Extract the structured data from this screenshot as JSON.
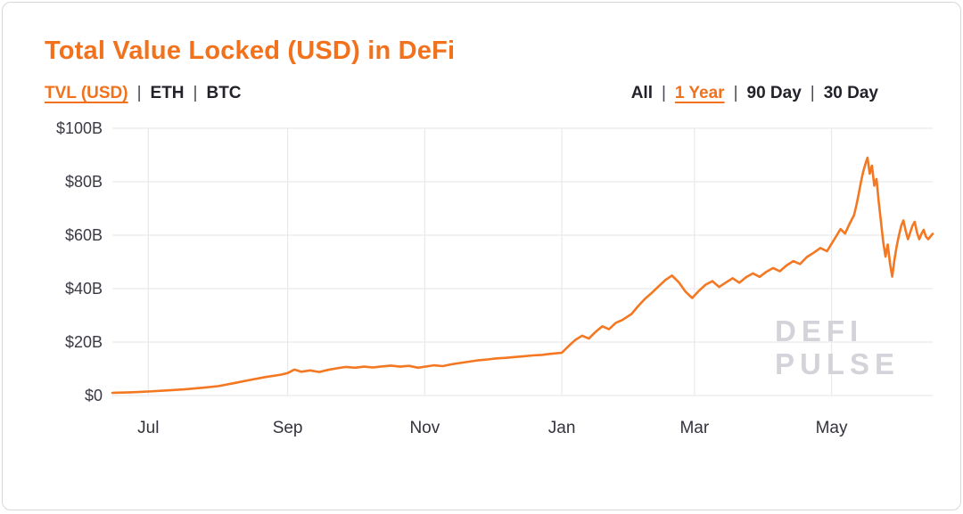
{
  "page": {
    "title": "Total Value Locked (USD) in DeFi"
  },
  "colors": {
    "accent": "#f2711c",
    "line": "#f47721",
    "grid": "#e9e9ec",
    "text": "#22222b",
    "watermark": "#d3d3d9"
  },
  "tabs": {
    "separator": "|",
    "metric": {
      "items": [
        {
          "label": "TVL (USD)",
          "active": true
        },
        {
          "label": "ETH",
          "active": false
        },
        {
          "label": "BTC",
          "active": false
        }
      ]
    },
    "range": {
      "items": [
        {
          "label": "All",
          "active": false
        },
        {
          "label": "1 Year",
          "active": true
        },
        {
          "label": "90 Day",
          "active": false
        },
        {
          "label": "30 Day",
          "active": false
        }
      ]
    }
  },
  "watermark": {
    "line1": "DEFI",
    "line2": "PULSE"
  },
  "chart_data": {
    "type": "line",
    "title": "Total Value Locked (USD) in DeFi",
    "xlabel": "",
    "ylabel": "",
    "unit": "USD billions",
    "xlim": [
      0,
      365
    ],
    "ylim": [
      0,
      100
    ],
    "grid": true,
    "legend": false,
    "xticks": [
      {
        "pos": 16,
        "label": "Jul"
      },
      {
        "pos": 78,
        "label": "Sep"
      },
      {
        "pos": 139,
        "label": "Nov"
      },
      {
        "pos": 200,
        "label": "Jan"
      },
      {
        "pos": 259,
        "label": "Mar"
      },
      {
        "pos": 320,
        "label": "May"
      }
    ],
    "yticks": [
      {
        "value": 0,
        "label": "$0"
      },
      {
        "value": 20,
        "label": "$20B"
      },
      {
        "value": 40,
        "label": "$40B"
      },
      {
        "value": 60,
        "label": "$60B"
      },
      {
        "value": 80,
        "label": "$80B"
      },
      {
        "value": 100,
        "label": "$100B"
      }
    ],
    "series": [
      {
        "name": "TVL (USD)",
        "points": [
          [
            0,
            1.0
          ],
          [
            8,
            1.2
          ],
          [
            16,
            1.5
          ],
          [
            24,
            1.9
          ],
          [
            32,
            2.3
          ],
          [
            40,
            2.9
          ],
          [
            47,
            3.5
          ],
          [
            54,
            4.6
          ],
          [
            61,
            5.8
          ],
          [
            68,
            6.9
          ],
          [
            75,
            7.8
          ],
          [
            78,
            8.4
          ],
          [
            81,
            9.7
          ],
          [
            84,
            8.9
          ],
          [
            88,
            9.4
          ],
          [
            92,
            8.8
          ],
          [
            96,
            9.6
          ],
          [
            100,
            10.2
          ],
          [
            104,
            10.7
          ],
          [
            108,
            10.4
          ],
          [
            112,
            10.8
          ],
          [
            116,
            10.5
          ],
          [
            120,
            10.9
          ],
          [
            124,
            11.2
          ],
          [
            128,
            10.8
          ],
          [
            132,
            11.1
          ],
          [
            136,
            10.4
          ],
          [
            139,
            10.8
          ],
          [
            143,
            11.3
          ],
          [
            147,
            11.0
          ],
          [
            151,
            11.7
          ],
          [
            155,
            12.2
          ],
          [
            159,
            12.7
          ],
          [
            163,
            13.2
          ],
          [
            167,
            13.5
          ],
          [
            171,
            13.9
          ],
          [
            175,
            14.1
          ],
          [
            179,
            14.4
          ],
          [
            183,
            14.7
          ],
          [
            187,
            15.0
          ],
          [
            191,
            15.2
          ],
          [
            195,
            15.6
          ],
          [
            200,
            16.0
          ],
          [
            203,
            18.5
          ],
          [
            206,
            20.8
          ],
          [
            209,
            22.4
          ],
          [
            212,
            21.3
          ],
          [
            215,
            23.8
          ],
          [
            218,
            25.9
          ],
          [
            221,
            24.8
          ],
          [
            224,
            27.2
          ],
          [
            227,
            28.3
          ],
          [
            231,
            30.5
          ],
          [
            234,
            33.5
          ],
          [
            237,
            36.2
          ],
          [
            240,
            38.4
          ],
          [
            243,
            40.8
          ],
          [
            246,
            43.2
          ],
          [
            249,
            44.9
          ],
          [
            252,
            42.4
          ],
          [
            255,
            38.9
          ],
          [
            258,
            36.5
          ],
          [
            261,
            39.2
          ],
          [
            264,
            41.5
          ],
          [
            267,
            42.8
          ],
          [
            270,
            40.6
          ],
          [
            273,
            42.3
          ],
          [
            276,
            43.9
          ],
          [
            279,
            42.2
          ],
          [
            282,
            44.3
          ],
          [
            285,
            45.7
          ],
          [
            288,
            44.4
          ],
          [
            291,
            46.3
          ],
          [
            294,
            47.7
          ],
          [
            297,
            46.5
          ],
          [
            300,
            48.7
          ],
          [
            303,
            50.3
          ],
          [
            306,
            49.2
          ],
          [
            309,
            51.8
          ],
          [
            312,
            53.4
          ],
          [
            315,
            55.2
          ],
          [
            318,
            54.0
          ],
          [
            320,
            56.8
          ],
          [
            322,
            59.5
          ],
          [
            324,
            62.3
          ],
          [
            326,
            60.6
          ],
          [
            328,
            64.2
          ],
          [
            330,
            67.5
          ],
          [
            331,
            71.0
          ],
          [
            332,
            75.0
          ],
          [
            333,
            79.5
          ],
          [
            334,
            83.5
          ],
          [
            335,
            86.5
          ],
          [
            336,
            89.0
          ],
          [
            337,
            83.0
          ],
          [
            338,
            86.0
          ],
          [
            339,
            78.5
          ],
          [
            340,
            81.0
          ],
          [
            341,
            72.5
          ],
          [
            342,
            65.0
          ],
          [
            343,
            57.5
          ],
          [
            344,
            52.0
          ],
          [
            345,
            56.5
          ],
          [
            346,
            49.5
          ],
          [
            347,
            44.5
          ],
          [
            348,
            51.0
          ],
          [
            349,
            56.0
          ],
          [
            350,
            60.0
          ],
          [
            351,
            63.5
          ],
          [
            352,
            65.5
          ],
          [
            353,
            61.5
          ],
          [
            354,
            58.5
          ],
          [
            355,
            61.0
          ],
          [
            356,
            63.5
          ],
          [
            357,
            65.0
          ],
          [
            358,
            61.0
          ],
          [
            359,
            58.5
          ],
          [
            360,
            60.5
          ],
          [
            361,
            62.0
          ],
          [
            362,
            59.5
          ],
          [
            363,
            58.5
          ],
          [
            364,
            59.5
          ],
          [
            365,
            60.5
          ]
        ]
      }
    ]
  }
}
